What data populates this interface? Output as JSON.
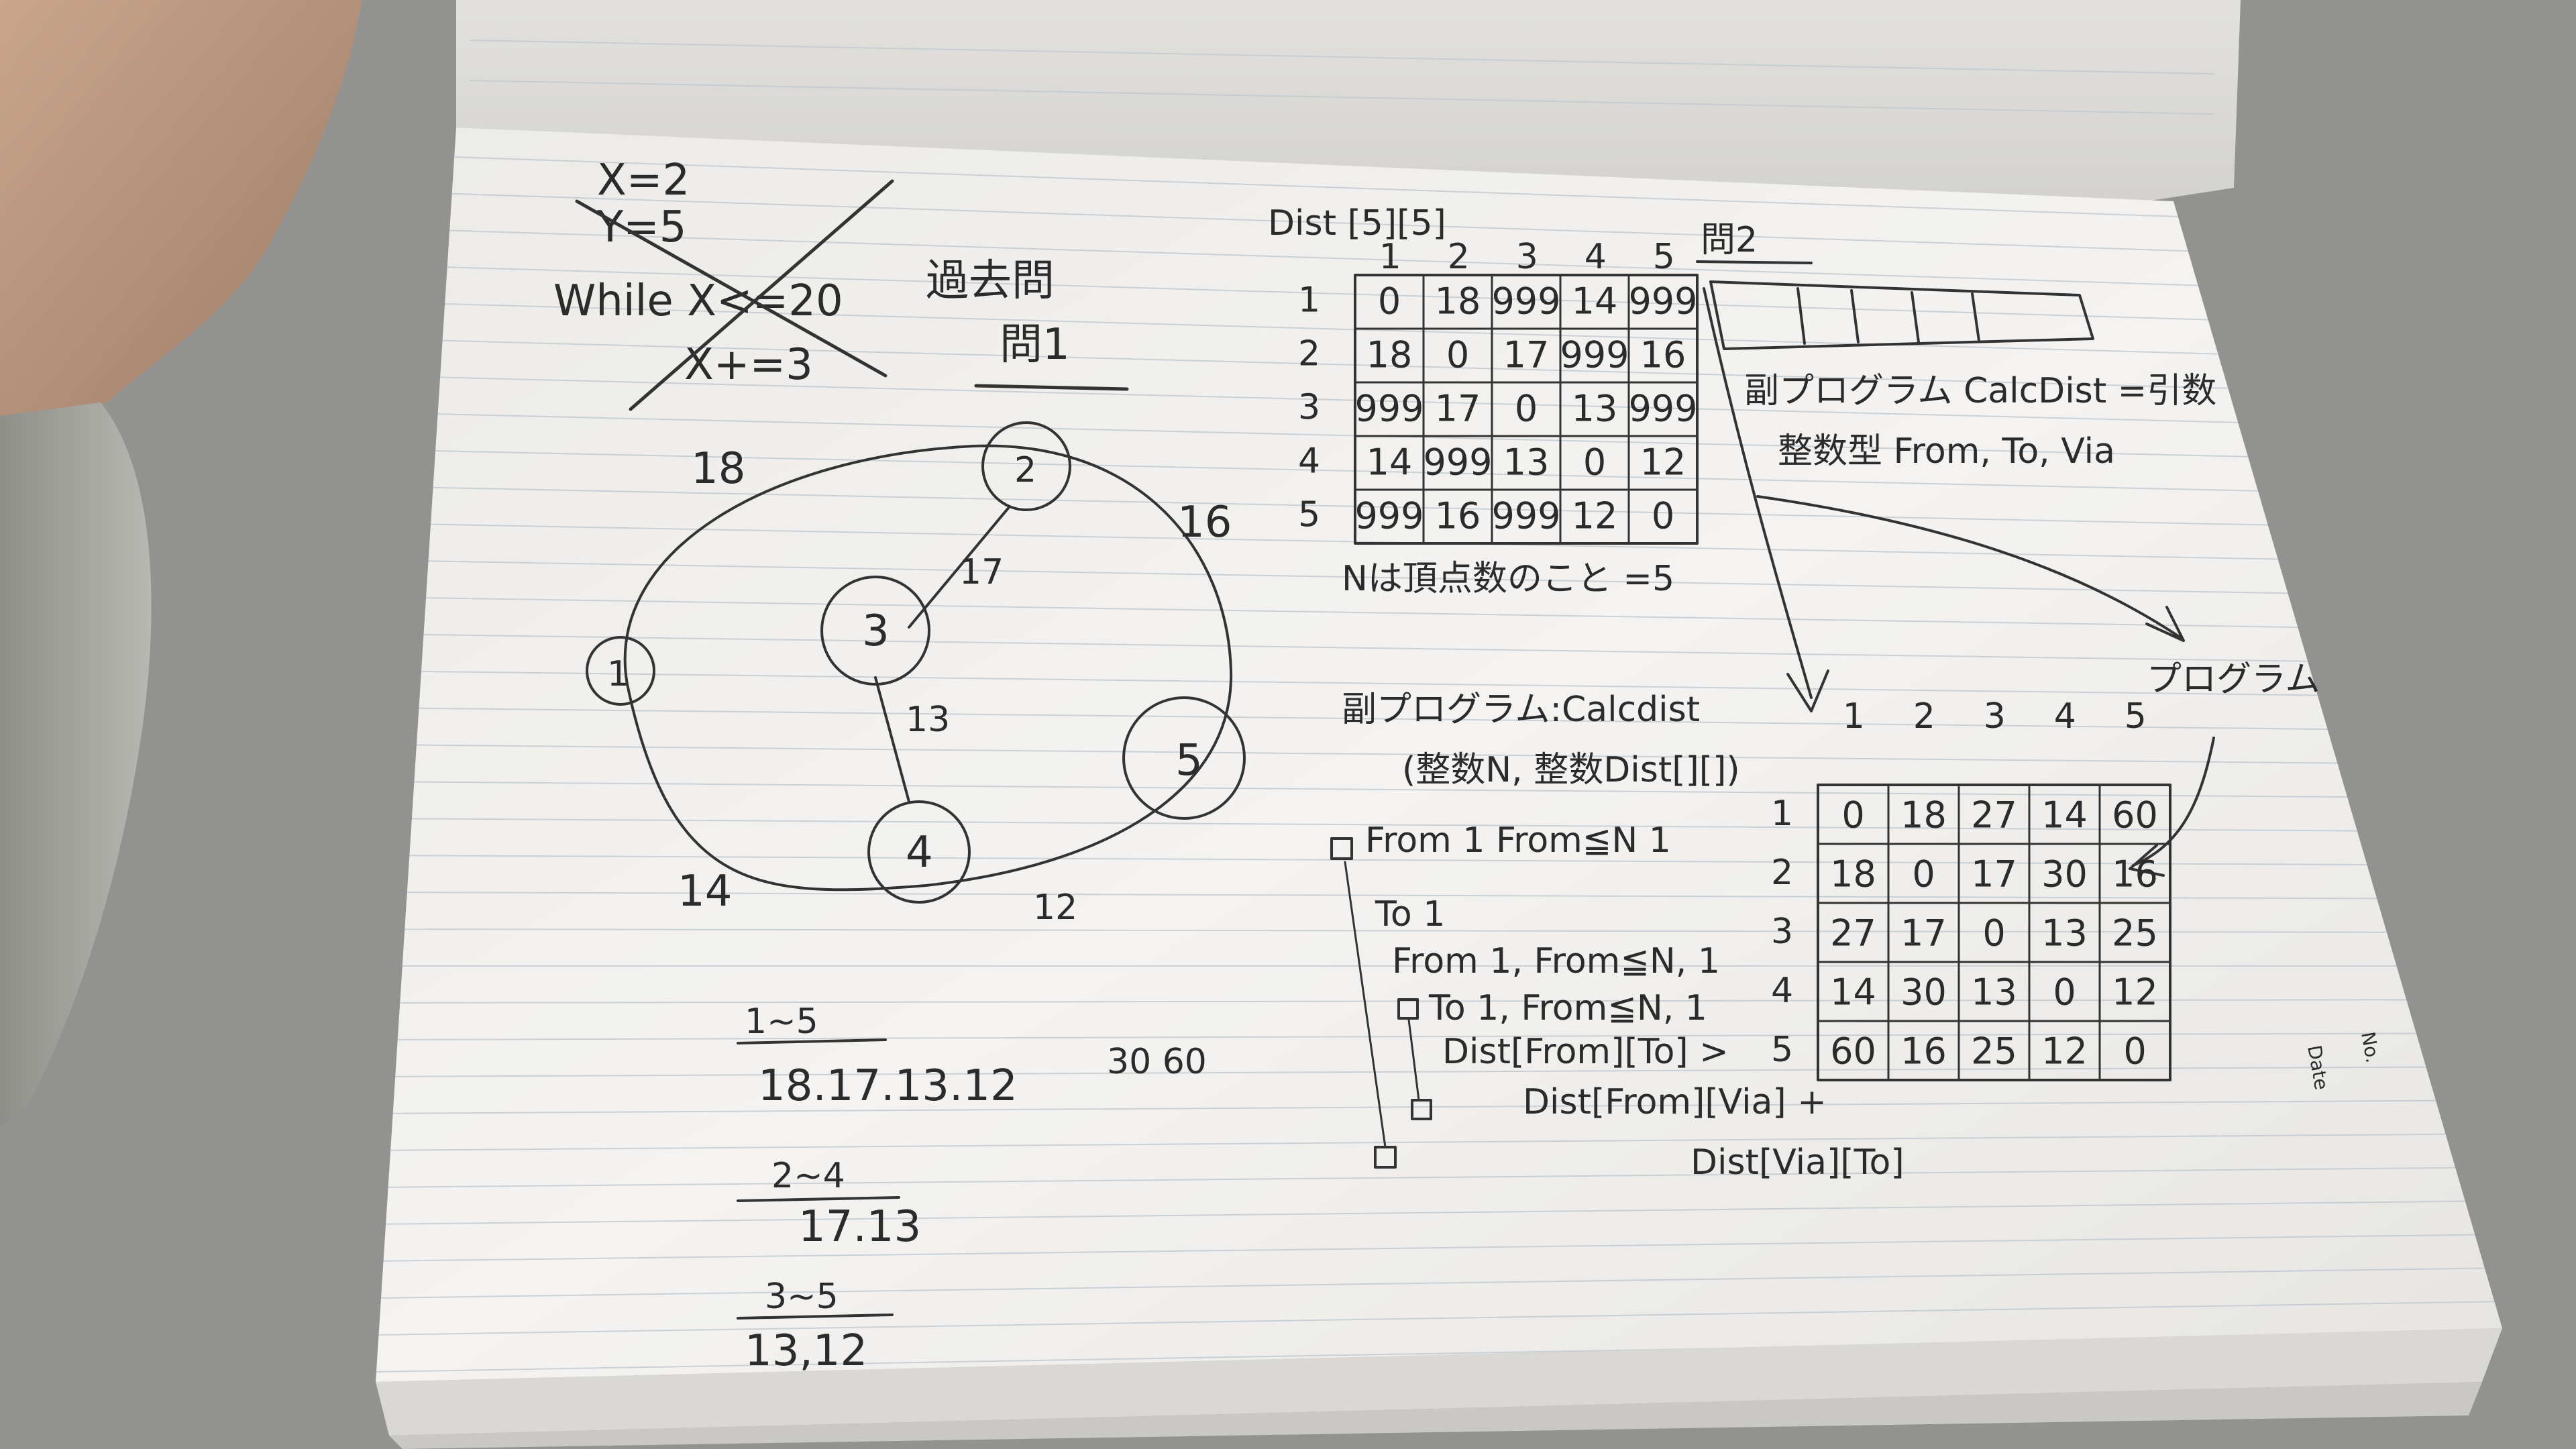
{
  "left_page": {
    "loop_code": {
      "assign_x": "X=2",
      "assign_y": "Y=5",
      "while_line": "While X<=20",
      "increment": "X+=3"
    },
    "past_question": "過去問",
    "question1": "問1",
    "graph": {
      "nodes": [
        "1",
        "2",
        "3",
        "4",
        "5"
      ],
      "edge_labels": [
        "18",
        "16",
        "17",
        "13",
        "14",
        "12"
      ]
    },
    "paths": [
      {
        "route": "1~5",
        "values": "18.17.13.12",
        "extra": "30 60"
      },
      {
        "route": "2~4",
        "values": "17.13"
      },
      {
        "route": "3~5",
        "values": "13,12"
      }
    ]
  },
  "dist_table": {
    "title": "Dist [5][5]",
    "columns": [
      "1",
      "2",
      "3",
      "4",
      "5"
    ],
    "rows": [
      {
        "label": "1",
        "cells": [
          "0",
          "18",
          "999",
          "14",
          "999"
        ]
      },
      {
        "label": "2",
        "cells": [
          "18",
          "0",
          "17",
          "999",
          "16"
        ]
      },
      {
        "label": "3",
        "cells": [
          "999",
          "17",
          "0",
          "13",
          "999"
        ]
      },
      {
        "label": "4",
        "cells": [
          "14",
          "999",
          "13",
          "0",
          "12"
        ]
      },
      {
        "label": "5",
        "cells": [
          "999",
          "16",
          "999",
          "12",
          "0"
        ]
      }
    ],
    "note": "Nは頂点数のこと =5"
  },
  "program": {
    "header": "副プログラム:Calcdist",
    "params": "(整数N, 整数Dist[][])",
    "lines": [
      "From 1  From≦N 1",
      "To 1",
      "From 1, From≦N, 1",
      "To 1, From≦N, 1",
      "Dist[From][To] >",
      "Dist[From][Via] +",
      "Dist[Via][To]"
    ]
  },
  "right_notes": {
    "question_label": "問2",
    "subprogram_line": "副プログラム CalcDist =引数",
    "types_line": "整数型 From, To, Via",
    "program_label": "プログラム"
  },
  "result_table": {
    "columns": [
      "1",
      "2",
      "3",
      "4",
      "5"
    ],
    "rows": [
      {
        "label": "1",
        "cells": [
          "0",
          "18",
          "27",
          "14",
          "60"
        ]
      },
      {
        "label": "2",
        "cells": [
          "18",
          "0",
          "17",
          "30",
          "16"
        ]
      },
      {
        "label": "3",
        "cells": [
          "27",
          "17",
          "0",
          "13",
          "25"
        ]
      },
      {
        "label": "4",
        "cells": [
          "14",
          "30",
          "13",
          "0",
          "12"
        ]
      },
      {
        "label": "5",
        "cells": [
          "60",
          "16",
          "25",
          "12",
          "0"
        ]
      }
    ]
  },
  "margin_labels": [
    "Date",
    "No."
  ]
}
